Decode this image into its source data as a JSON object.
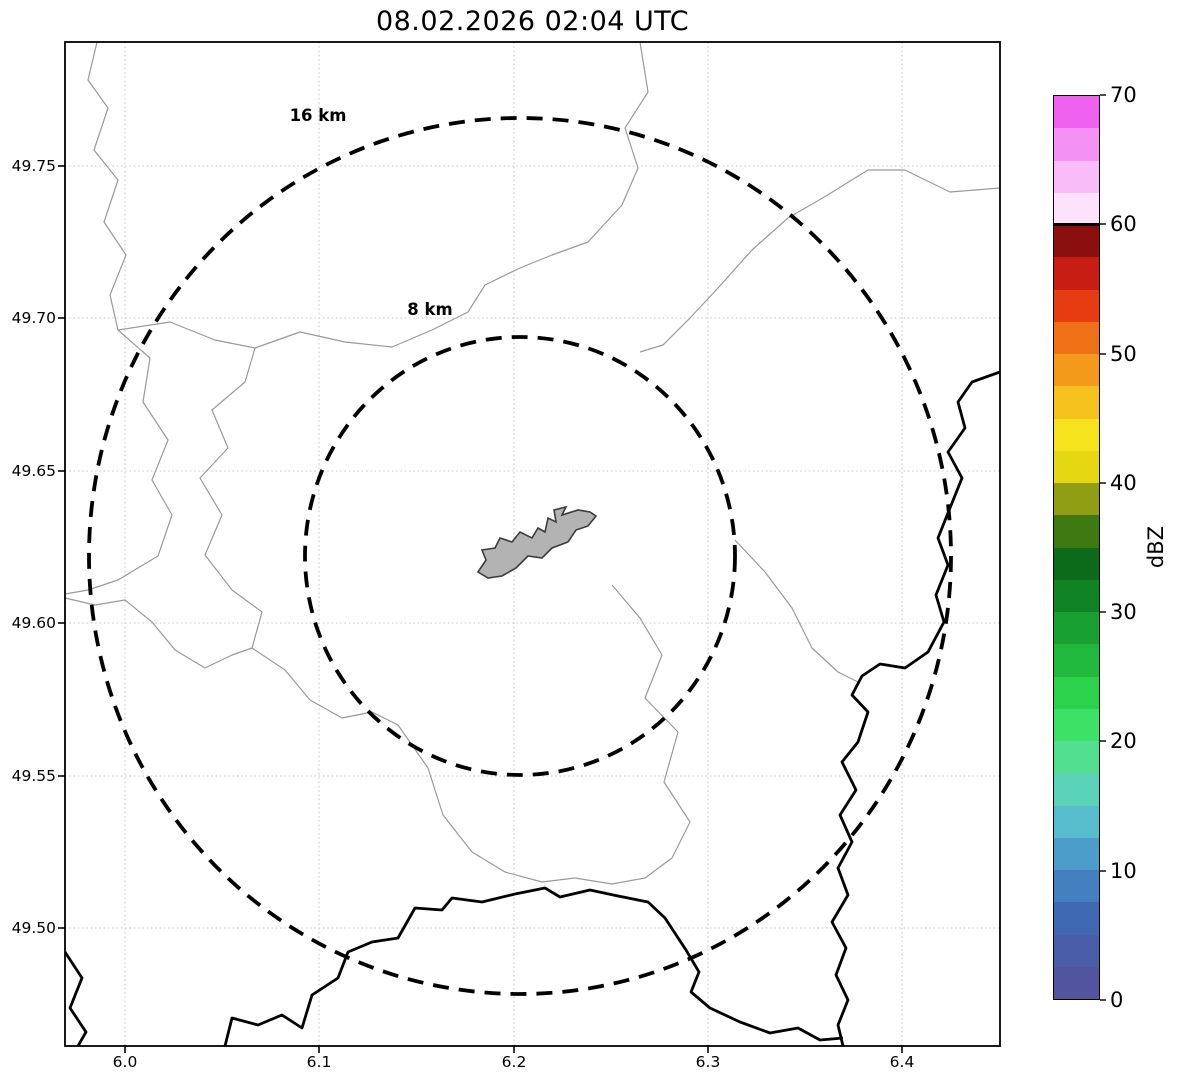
{
  "title": "08.02.2026 02:04 UTC",
  "map": {
    "x_tick_labels": [
      "6.0",
      "6.1",
      "6.2",
      "6.3",
      "6.4"
    ],
    "y_tick_labels": [
      "49.75",
      "49.70",
      "49.65",
      "49.60",
      "49.55",
      "49.50"
    ],
    "range_rings": [
      {
        "label": "16 km"
      },
      {
        "label": "8 km"
      }
    ],
    "features": {
      "city_fill": "#b3b3b3",
      "thin_boundary_color": "#999999",
      "thick_boundary_color": "#000000"
    }
  },
  "colorbar": {
    "label": "dBZ",
    "tick_labels": [
      "70",
      "60",
      "50",
      "40",
      "30",
      "20",
      "10",
      "0"
    ],
    "colors_bottom_to_top": [
      "#52549e",
      "#4a5da9",
      "#3f68b3",
      "#4480bf",
      "#4d9dcb",
      "#57bccb",
      "#5bd3b9",
      "#53df90",
      "#3ce266",
      "#2bd24c",
      "#21b93d",
      "#18a030",
      "#108424",
      "#0c6b1a",
      "#3f7a10",
      "#8f9e12",
      "#e5d813",
      "#f5e41d",
      "#f5c11c",
      "#f49a1b",
      "#ef7115",
      "#e73b11",
      "#c81d13",
      "#8c0f0f",
      "#fbe3fb",
      "#f8bcf8",
      "#f491f4",
      "#ee60ee"
    ]
  },
  "chart_data": {
    "type": "heatmap",
    "title": "08.02.2026 02:04 UTC",
    "xlabel": "",
    "ylabel": "",
    "x_ticks": [
      6.0,
      6.1,
      6.2,
      6.3,
      6.4
    ],
    "y_ticks": [
      49.5,
      49.55,
      49.6,
      49.65,
      49.7,
      49.75
    ],
    "xlim": [
      5.969,
      6.45
    ],
    "ylim": [
      49.461,
      49.791
    ],
    "grid": true,
    "colorbar": {
      "label": "dBZ",
      "min": 0,
      "max": 70,
      "tick_step": 10,
      "step_db": 2.5
    },
    "range_rings_km": [
      8,
      16
    ],
    "reflectivity_echoes": []
  }
}
